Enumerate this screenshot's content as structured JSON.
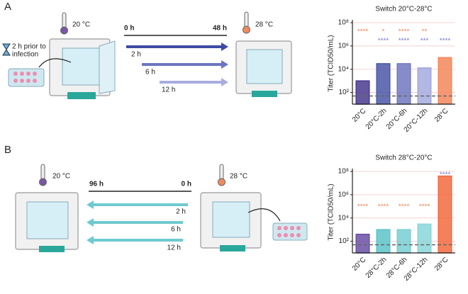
{
  "diagram": {
    "a": {
      "letter": "A",
      "temp_left": "20 °C",
      "temp_right": "28 °C",
      "prior_line1": "2 h prior to",
      "prior_line2": "infection",
      "start": "0 h",
      "end": "48 h",
      "arrows": [
        "2 h",
        "6 h",
        "12 h"
      ]
    },
    "b": {
      "letter": "B",
      "temp_left": "20 °C",
      "temp_right": "28 °C",
      "start": "96 h",
      "end": "0 h",
      "arrows": [
        "2 h",
        "6 h",
        "12 h"
      ]
    }
  },
  "chart_data": [
    {
      "type": "bar",
      "title": "Switch 20°C-28°C",
      "ylabel": "Titer (TCID50/mL)",
      "categories": [
        "20°C",
        "20°C-2h",
        "20°C-6h",
        "20°C-12h",
        "28°C"
      ],
      "values": [
        1000,
        30000,
        30000,
        13000,
        100000
      ],
      "colors": [
        "#4a3b8f",
        "#4b57a8",
        "#7078c0",
        "#a4aade",
        "#f3875c"
      ],
      "log": true,
      "ylim": [
        10,
        100000000
      ],
      "yticks": [
        {
          "value": 100,
          "label": "10²"
        },
        {
          "value": 10000,
          "label": "10⁴"
        },
        {
          "value": 1000000,
          "label": "10⁶"
        },
        {
          "value": 100000000,
          "label": "10⁸"
        }
      ],
      "grid": true,
      "reference_line": 50,
      "sig_rows": [
        {
          "color": "#f08a5d",
          "labels": [
            "****",
            "*",
            "****",
            "**",
            null
          ]
        },
        {
          "color": "#7a7fd0",
          "labels": [
            null,
            "****",
            "****",
            "***",
            "****"
          ]
        }
      ]
    },
    {
      "type": "bar",
      "title": "Switch 28°C-20°C",
      "ylabel": "Titer (TCID50/mL)",
      "categories": [
        "20°C",
        "28°C-2h",
        "28°C-6h",
        "28°C-12h",
        "28°C"
      ],
      "values": [
        400,
        1000,
        1000,
        3000,
        40000000
      ],
      "colors": [
        "#6a50a5",
        "#5cc4c9",
        "#78cfd2",
        "#8ad6d8",
        "#f26a40"
      ],
      "log": true,
      "ylim": [
        10,
        100000000
      ],
      "yticks": [
        {
          "value": 100,
          "label": "10²"
        },
        {
          "value": 10000,
          "label": "10⁴"
        },
        {
          "value": 1000000,
          "label": "10⁶"
        },
        {
          "value": 100000000,
          "label": "10⁸"
        }
      ],
      "grid": true,
      "reference_line": 50,
      "sig_rows": [
        {
          "color": "#f08a5d",
          "labels": [
            "****",
            "****",
            "****",
            "****",
            null
          ]
        },
        {
          "color": "#7a7fd0",
          "labels": [
            null,
            null,
            null,
            null,
            "****"
          ]
        }
      ]
    }
  ]
}
